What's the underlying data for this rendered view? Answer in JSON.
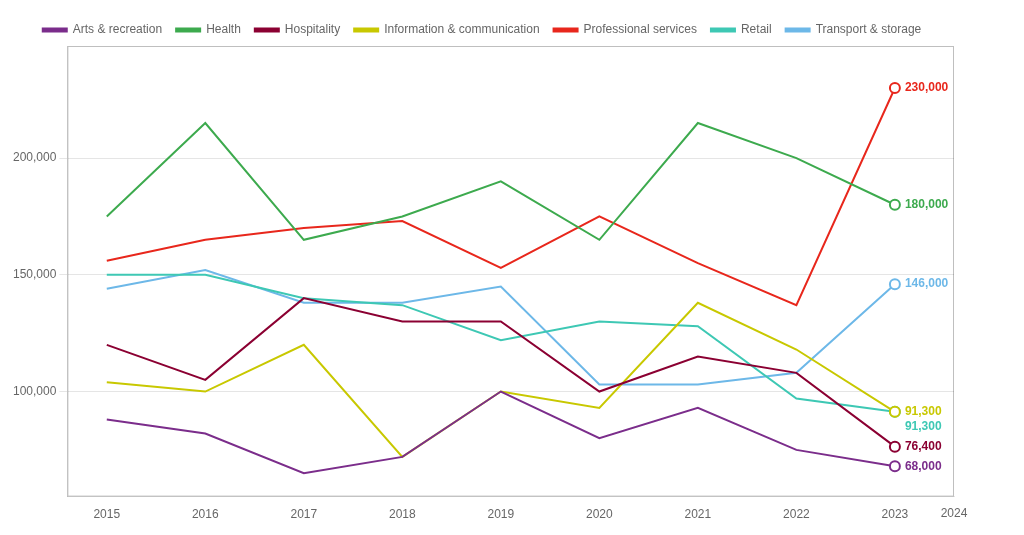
{
  "chart_data": {
    "type": "line",
    "x": [
      2015,
      2016,
      2017,
      2018,
      2019,
      2020,
      2021,
      2022,
      2023
    ],
    "series": [
      {
        "name": "Arts & recreation",
        "color": "#7B2D8B",
        "values": [
          88000,
          82000,
          65000,
          72000,
          100000,
          80000,
          93000,
          75000,
          68000
        ],
        "value_labels": [
          null,
          null,
          null,
          null,
          null,
          null,
          null,
          null,
          "68,000"
        ]
      },
      {
        "name": "Health",
        "color": "#3DAA4E",
        "values": [
          175000,
          215000,
          165000,
          175000,
          190000,
          165000,
          215000,
          200000,
          180000
        ],
        "value_labels": [
          null,
          null,
          null,
          null,
          null,
          null,
          null,
          null,
          "180,000"
        ]
      },
      {
        "name": "Hospitality",
        "color": "#8B0032",
        "values": [
          120000,
          105000,
          140000,
          130000,
          130000,
          100000,
          115000,
          108000,
          76400
        ],
        "value_labels": [
          null,
          null,
          null,
          null,
          null,
          null,
          null,
          null,
          "76,400"
        ]
      },
      {
        "name": "Information & communication",
        "color": "#C8C800",
        "values": [
          104000,
          100000,
          120000,
          72000,
          100000,
          93000,
          138000,
          118000,
          91300
        ],
        "value_labels": [
          null,
          null,
          null,
          null,
          null,
          null,
          null,
          null,
          "91,300"
        ]
      },
      {
        "name": "Professional services",
        "color": "#E8271C",
        "values": [
          156000,
          165000,
          170000,
          173000,
          153000,
          175000,
          155000,
          137000,
          230000
        ],
        "value_labels": [
          null,
          null,
          null,
          null,
          null,
          null,
          null,
          null,
          "230,000"
        ]
      },
      {
        "name": "Retail",
        "color": "#3EC8B4",
        "values": [
          150000,
          150000,
          140000,
          137000,
          122000,
          130000,
          128000,
          97000,
          91300
        ],
        "value_labels": [
          null,
          null,
          null,
          null,
          null,
          null,
          null,
          null,
          "91,300"
        ]
      },
      {
        "name": "Transport & storage",
        "color": "#6DB8E8",
        "values": [
          144000,
          152000,
          138000,
          138000,
          145000,
          103000,
          103000,
          108000,
          146000
        ],
        "value_labels": [
          null,
          null,
          null,
          null,
          null,
          null,
          null,
          null,
          "146,000"
        ]
      }
    ],
    "xlim": [
      2014.6,
      2023.6
    ],
    "xticks": [
      2015,
      2016,
      2017,
      2018,
      2019,
      2020,
      2021,
      2022,
      2023
    ],
    "ylim": [
      55000,
      248000
    ],
    "yticks": [
      {
        "value": 100000,
        "label": "100,000"
      },
      {
        "value": 150000,
        "label": "150,000"
      },
      {
        "value": 200000,
        "label": "200,000"
      }
    ],
    "grid": true,
    "legend": "top",
    "data_labels": true,
    "annotations": [
      "2024"
    ]
  }
}
